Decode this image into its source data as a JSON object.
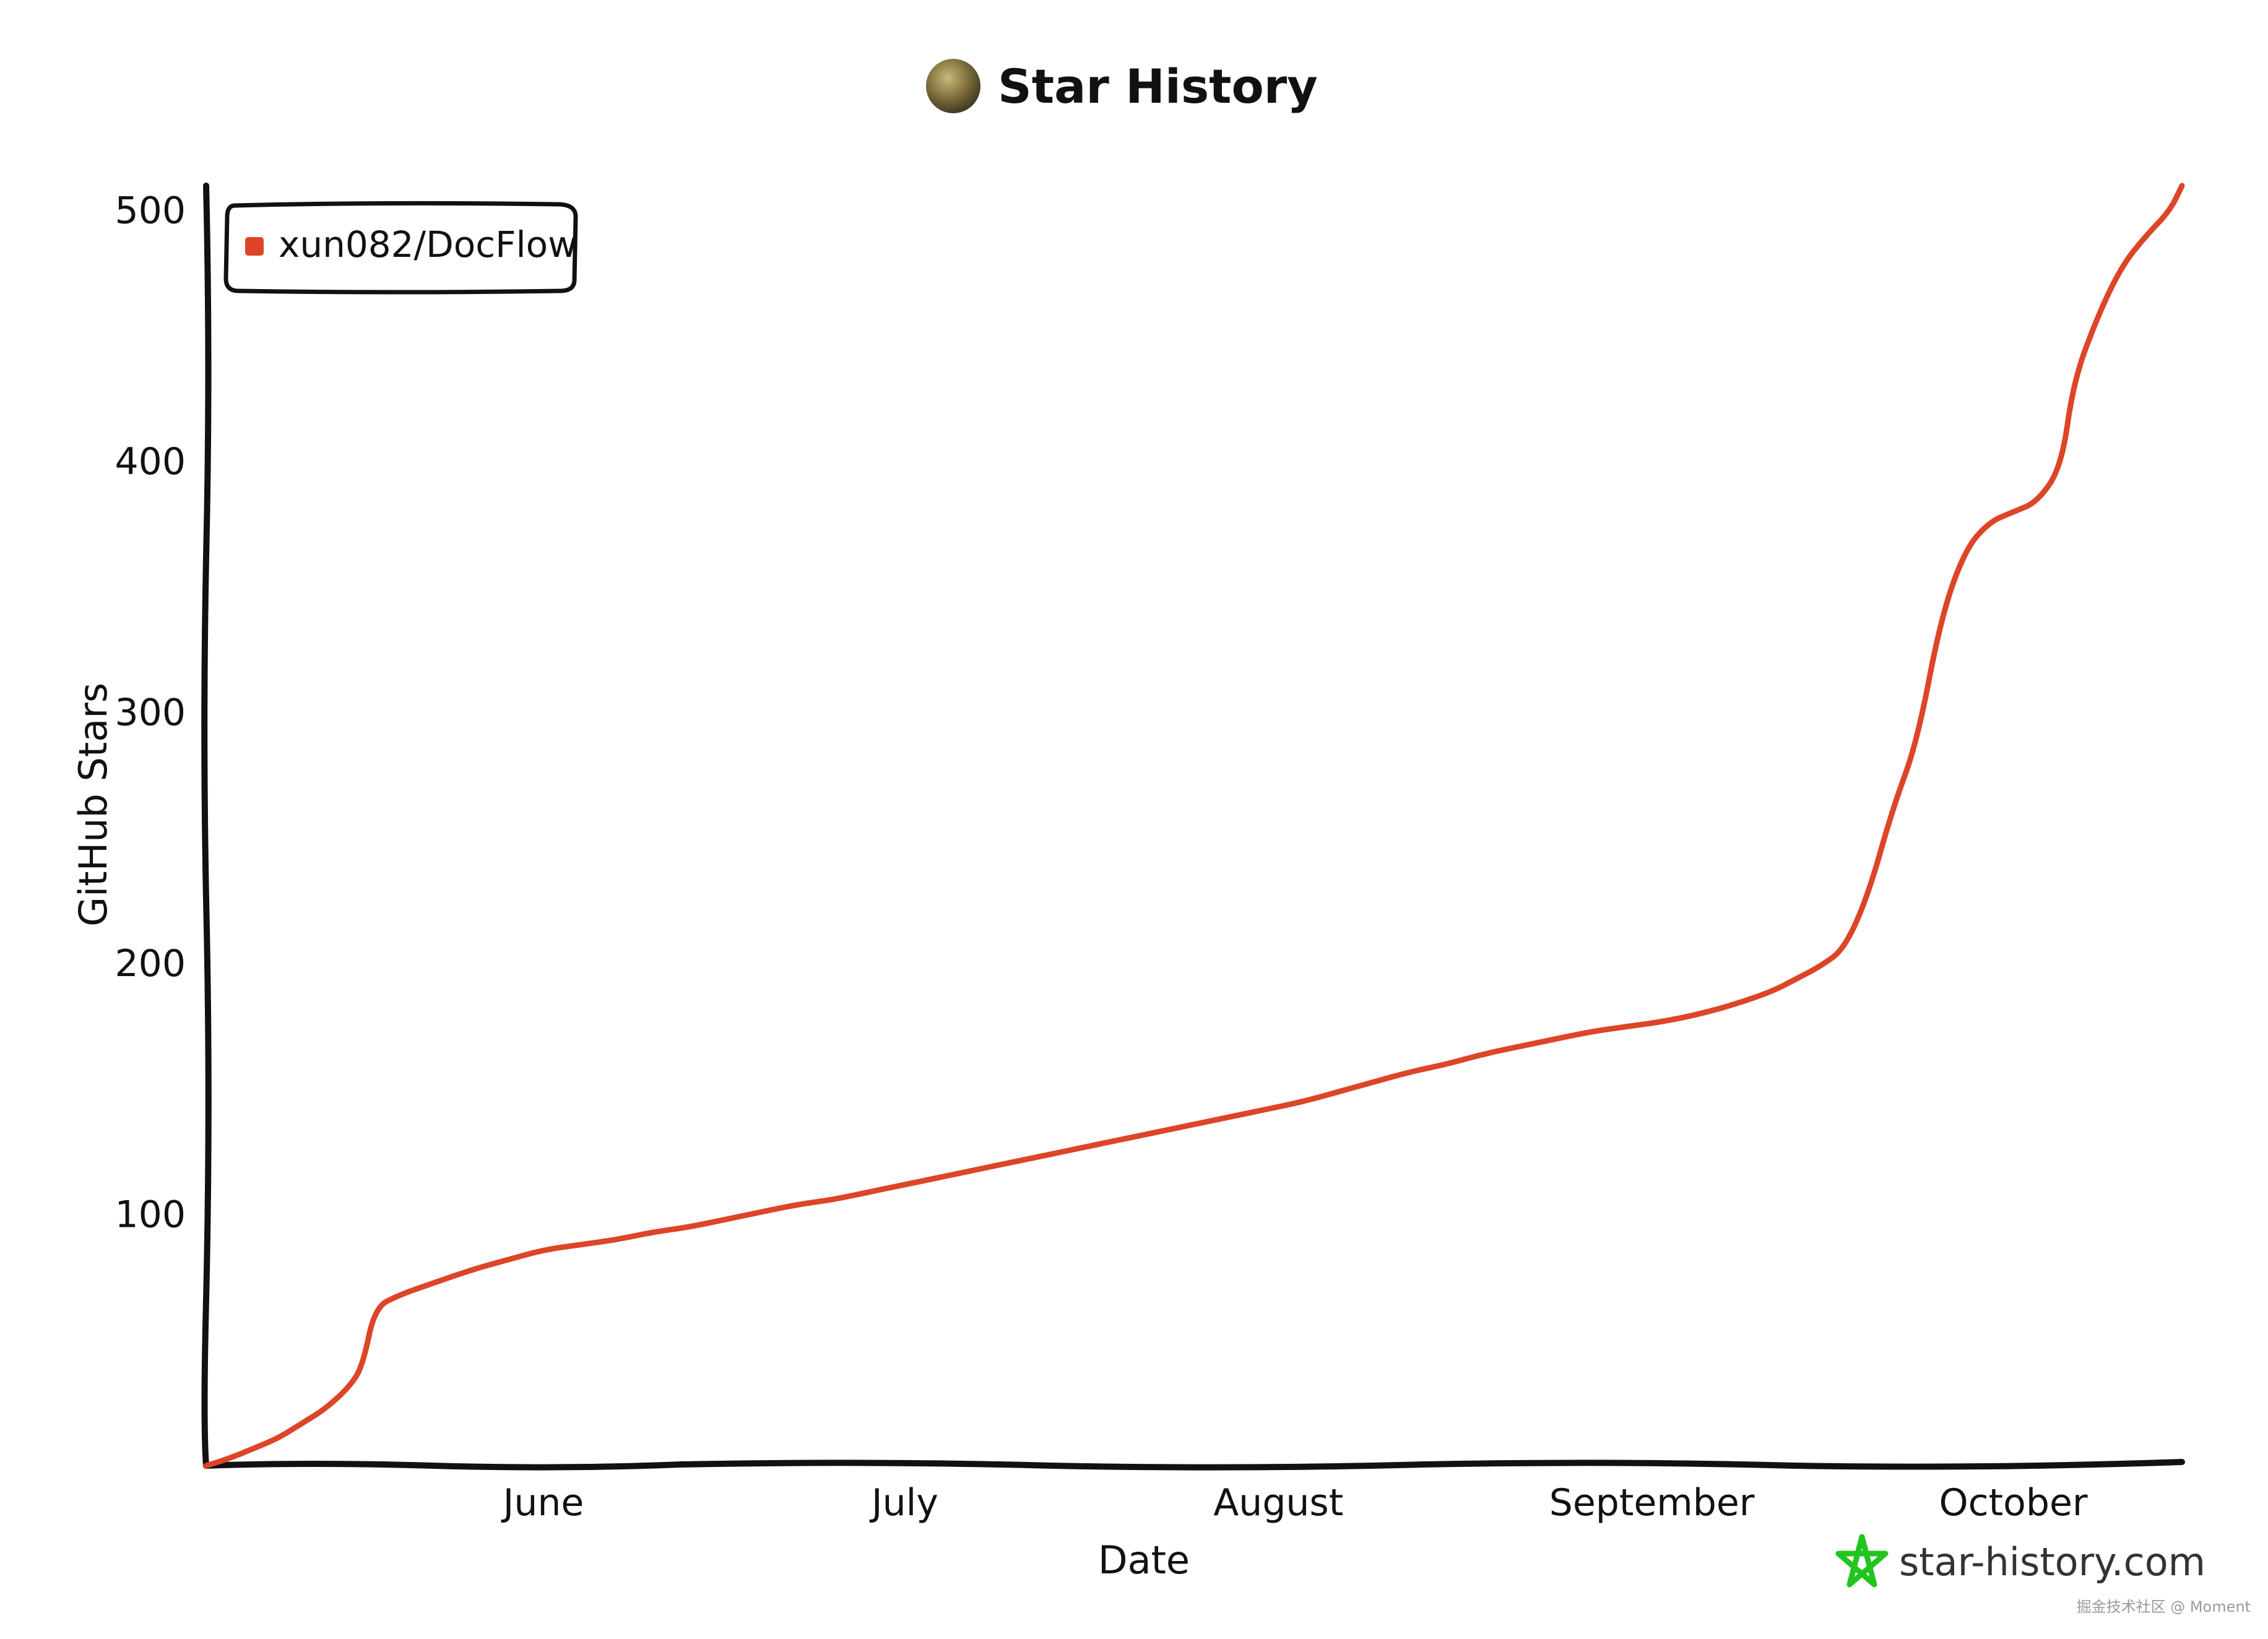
{
  "chart_data": {
    "type": "line",
    "title": "Star History",
    "xlabel": "Date",
    "ylabel": "GitHub Stars",
    "x_tick_labels": [
      "June",
      "July",
      "August",
      "September",
      "October"
    ],
    "y_ticks": [
      100,
      200,
      300,
      400,
      500
    ],
    "ylim": [
      0,
      510
    ],
    "grid": false,
    "legend_position": "top-left",
    "series": [
      {
        "name": "xun082/DocFlow",
        "color": "#dd4528",
        "points": [
          [
            "2024-05-18",
            0
          ],
          [
            "2024-05-20",
            3
          ],
          [
            "2024-05-22",
            7
          ],
          [
            "2024-05-24",
            11
          ],
          [
            "2024-05-26",
            17
          ],
          [
            "2024-05-28",
            23
          ],
          [
            "2024-05-30",
            32
          ],
          [
            "2024-05-31",
            40
          ],
          [
            "2024-06-01",
            63
          ],
          [
            "2024-06-03",
            68
          ],
          [
            "2024-06-06",
            73
          ],
          [
            "2024-06-09",
            78
          ],
          [
            "2024-06-12",
            82
          ],
          [
            "2024-06-15",
            86
          ],
          [
            "2024-06-18",
            88
          ],
          [
            "2024-06-21",
            90
          ],
          [
            "2024-06-24",
            93
          ],
          [
            "2024-06-27",
            95
          ],
          [
            "2024-06-30",
            98
          ],
          [
            "2024-07-03",
            101
          ],
          [
            "2024-07-06",
            104
          ],
          [
            "2024-07-09",
            106
          ],
          [
            "2024-07-12",
            109
          ],
          [
            "2024-07-15",
            112
          ],
          [
            "2024-07-18",
            115
          ],
          [
            "2024-07-21",
            118
          ],
          [
            "2024-07-24",
            121
          ],
          [
            "2024-07-27",
            124
          ],
          [
            "2024-07-30",
            127
          ],
          [
            "2024-08-02",
            130
          ],
          [
            "2024-08-05",
            133
          ],
          [
            "2024-08-08",
            136
          ],
          [
            "2024-08-11",
            139
          ],
          [
            "2024-08-14",
            142
          ],
          [
            "2024-08-17",
            145
          ],
          [
            "2024-08-20",
            149
          ],
          [
            "2024-08-23",
            153
          ],
          [
            "2024-08-26",
            157
          ],
          [
            "2024-08-29",
            160
          ],
          [
            "2024-09-01",
            164
          ],
          [
            "2024-09-04",
            167
          ],
          [
            "2024-09-07",
            170
          ],
          [
            "2024-09-10",
            173
          ],
          [
            "2024-09-13",
            175
          ],
          [
            "2024-09-16",
            177
          ],
          [
            "2024-09-19",
            180
          ],
          [
            "2024-09-22",
            184
          ],
          [
            "2024-09-25",
            189
          ],
          [
            "2024-09-27",
            194
          ],
          [
            "2024-09-29",
            199
          ],
          [
            "2024-10-01",
            206
          ],
          [
            "2024-10-03",
            228
          ],
          [
            "2024-10-05",
            262
          ],
          [
            "2024-10-07",
            288
          ],
          [
            "2024-10-09",
            338
          ],
          [
            "2024-10-11",
            365
          ],
          [
            "2024-10-13",
            376
          ],
          [
            "2024-10-15",
            380
          ],
          [
            "2024-10-17",
            384
          ],
          [
            "2024-10-19",
            398
          ],
          [
            "2024-10-20",
            432
          ],
          [
            "2024-10-22",
            458
          ],
          [
            "2024-10-24",
            478
          ],
          [
            "2024-10-26",
            490
          ],
          [
            "2024-10-28",
            500
          ],
          [
            "2024-10-29",
            510
          ]
        ]
      }
    ]
  },
  "brand": {
    "text": "star-history.com",
    "icon": "star-icon",
    "icon_color": "#22c41e"
  },
  "header": {
    "avatar_icon": "avatar-icon"
  },
  "watermark": {
    "text": "掘金技术社区 @ Moment"
  }
}
